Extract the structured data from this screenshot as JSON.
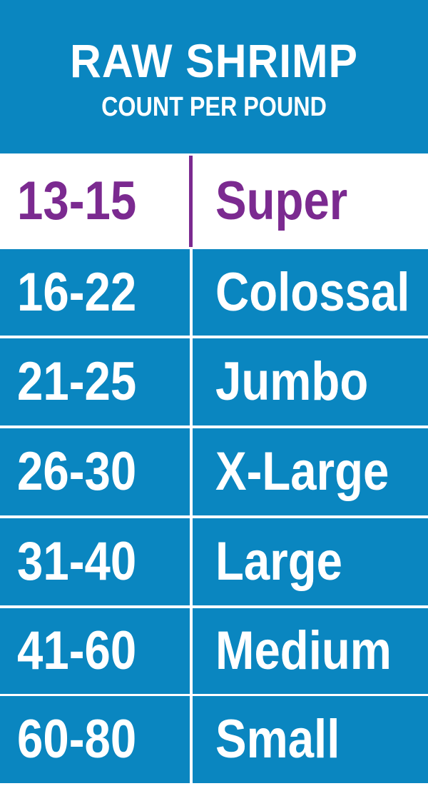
{
  "header": {
    "title": "RAW SHRIMP",
    "subtitle": "COUNT PER POUND"
  },
  "colors": {
    "blue": "#0a86c0",
    "purple": "#7b2a90",
    "white": "#ffffff"
  },
  "rows": [
    {
      "count": "13-15",
      "size": "Super",
      "highlighted": true
    },
    {
      "count": "16-22",
      "size": "Colossal"
    },
    {
      "count": "21-25",
      "size": "Jumbo"
    },
    {
      "count": "26-30",
      "size": "X-Large"
    },
    {
      "count": "31-40",
      "size": "Large"
    },
    {
      "count": "41-60",
      "size": "Medium"
    },
    {
      "count": "60-80",
      "size": "Small"
    }
  ]
}
